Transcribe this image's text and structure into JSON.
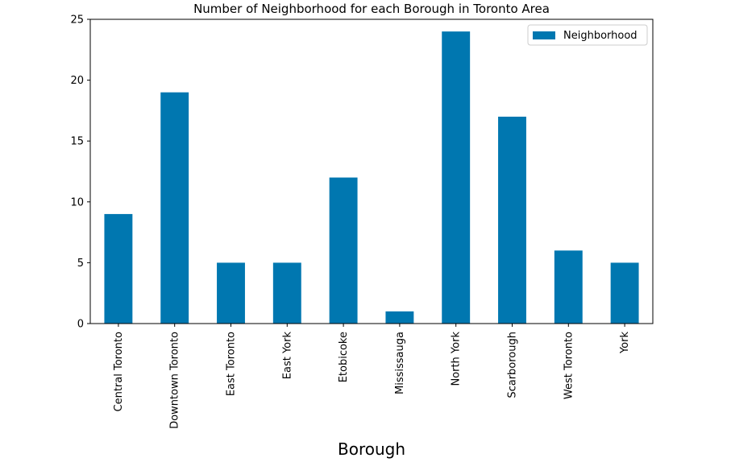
{
  "chart_data": {
    "type": "bar",
    "title": "Number of Neighborhood for each Borough in Toronto Area",
    "xlabel": "Borough",
    "ylabel": "",
    "categories": [
      "Central Toronto",
      "Downtown Toronto",
      "East Toronto",
      "East York",
      "Etobicoke",
      "Mississauga",
      "North York",
      "Scarborough",
      "West Toronto",
      "York"
    ],
    "series": [
      {
        "name": "Neighborhood",
        "values": [
          9,
          19,
          5,
          5,
          12,
          1,
          24,
          17,
          6,
          5
        ]
      }
    ],
    "ylim": [
      0,
      25
    ],
    "yticks": [
      0,
      5,
      10,
      15,
      20,
      25
    ],
    "grid": false,
    "legend_position": "top-right",
    "bar_color": "#0077b0"
  }
}
